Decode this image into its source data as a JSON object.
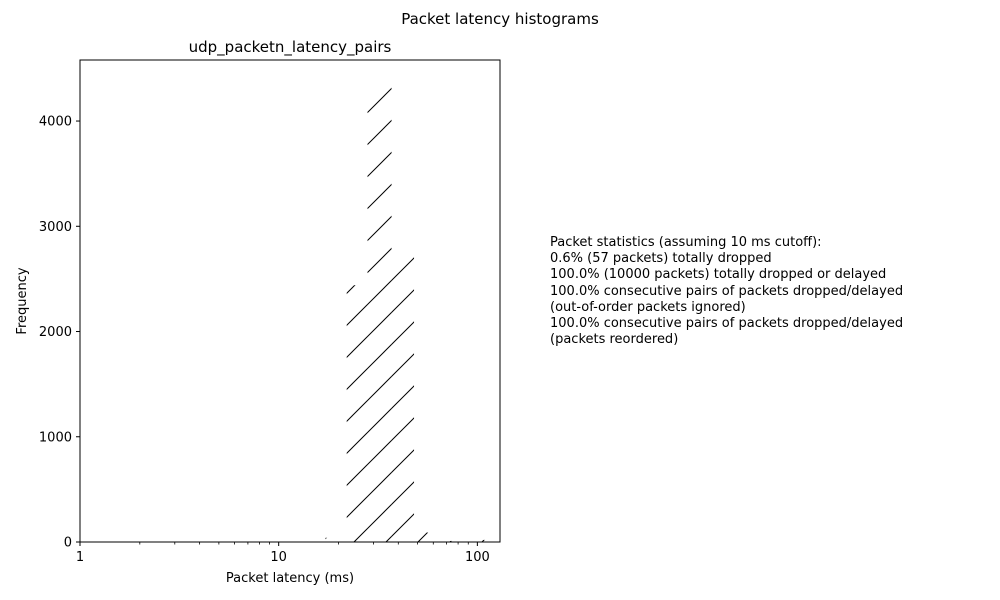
{
  "figure": {
    "suptitle": "Packet latency histograms"
  },
  "stats": {
    "lines": [
      "Packet statistics (assuming 10 ms cutoff):",
      "0.6% (57 packets) totally dropped",
      "100.0% (10000 packets) totally dropped or delayed",
      "100.0% consecutive pairs of packets dropped/delayed",
      "(out-of-order packets ignored)",
      "100.0% consecutive pairs of packets dropped/delayed",
      "(packets reordered)"
    ]
  },
  "chart_data": {
    "type": "bar",
    "title": "udp_packetn_latency_pairs",
    "xlabel": "Packet latency (ms)",
    "ylabel": "Frequency",
    "x_scale": "log",
    "xlim": [
      1,
      130
    ],
    "ylim": [
      0,
      4580
    ],
    "xticks": [
      1,
      10,
      100
    ],
    "xtick_labels": [
      "1",
      "10",
      "100"
    ],
    "yticks": [
      0,
      1000,
      2000,
      3000,
      4000
    ],
    "ytick_labels": [
      "0",
      "1000",
      "2000",
      "3000",
      "4000"
    ],
    "bar_style": "hatched, no fill",
    "grid": false,
    "bins": [
      {
        "x0": 17.2,
        "x1": 22.0,
        "value": 40
      },
      {
        "x0": 22.0,
        "x1": 28.0,
        "value": 2440
      },
      {
        "x0": 28.0,
        "x1": 37.0,
        "value": 4370
      },
      {
        "x0": 37.0,
        "x1": 48.0,
        "value": 2740
      },
      {
        "x0": 48.0,
        "x1": 62.0,
        "value": 90
      },
      {
        "x0": 62.0,
        "x1": 80.0,
        "value": 10
      },
      {
        "x0": 80.0,
        "x1": 105.0,
        "value": 60
      },
      {
        "x0": 105.0,
        "x1": 125.0,
        "value": 20
      }
    ]
  }
}
